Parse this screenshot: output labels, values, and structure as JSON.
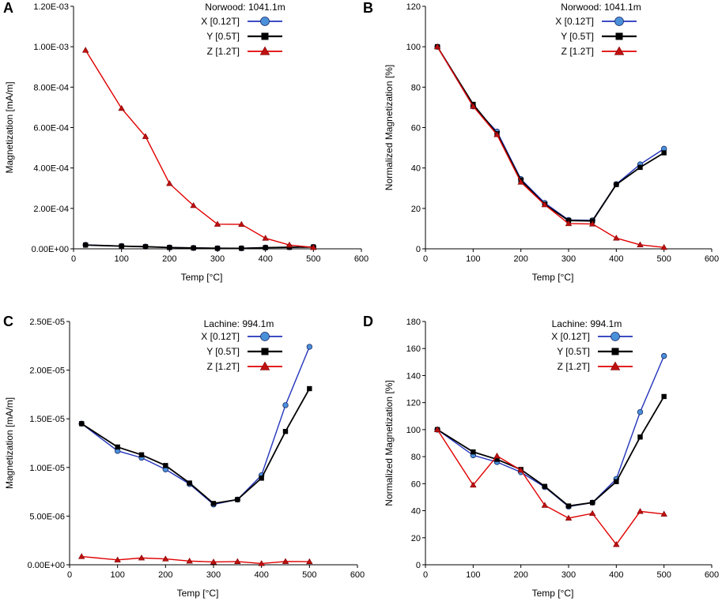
{
  "figure": {
    "colors": {
      "x_series": "#2233bb",
      "x_marker": "#4a90d9",
      "y_series": "#000000",
      "z_series": "#e00000",
      "z_marker": "#c01010"
    }
  },
  "chart_data": [
    {
      "panel": "A",
      "type": "line",
      "location": "Norwood: 1041.1m",
      "xlabel": "Temp [°C]",
      "ylabel": "Magnetization [mA/m]",
      "xlim": [
        0,
        600
      ],
      "ylim": [
        0,
        0.0012
      ],
      "xticks": [
        0,
        100,
        200,
        300,
        400,
        500,
        600
      ],
      "yticks": [
        0,
        0.0002,
        0.0004,
        0.0006,
        0.0008,
        0.001,
        0.0012
      ],
      "ytick_labels": [
        "0.00E+00",
        "2.00E-04",
        "4.00E-04",
        "6.00E-04",
        "8.00E-04",
        "1.00E-03",
        "1.20E-03"
      ],
      "x": [
        25,
        100,
        150,
        200,
        250,
        300,
        350,
        400,
        450,
        500
      ],
      "series": [
        {
          "name": "X [0.12T]",
          "marker": "circle",
          "values": [
            1.95e-05,
            1.4e-05,
            1.1e-05,
            6.7e-06,
            4.4e-06,
            2.8e-06,
            2.7e-06,
            6.2e-06,
            8.1e-06,
            9.6e-06
          ]
        },
        {
          "name": "Y [0.5T]",
          "marker": "square",
          "values": [
            1.85e-05,
            1.33e-05,
            1.05e-05,
            6.3e-06,
            4.1e-06,
            2.6e-06,
            2.5e-06,
            5.9e-06,
            7.5e-06,
            8.8e-06
          ]
        },
        {
          "name": "Z [1.2T]",
          "marker": "triangle",
          "values": [
            0.000983,
            0.000695,
            0.000556,
            0.000323,
            0.000214,
            0.000122,
            0.000121,
            5.25e-05,
            1.9e-05,
            6.5e-06
          ]
        }
      ]
    },
    {
      "panel": "B",
      "type": "line",
      "location": "Norwood: 1041.1m",
      "xlabel": "Temp [°C]",
      "ylabel": "Normalized Magnetization [%]",
      "xlim": [
        0,
        600
      ],
      "ylim": [
        0,
        120
      ],
      "xticks": [
        0,
        100,
        200,
        300,
        400,
        500,
        600
      ],
      "yticks": [
        0,
        20,
        40,
        60,
        80,
        100,
        120
      ],
      "ytick_labels": [
        "0",
        "20",
        "40",
        "60",
        "80",
        "100",
        "120"
      ],
      "x": [
        25,
        100,
        150,
        200,
        250,
        300,
        350,
        400,
        450,
        500
      ],
      "series": [
        {
          "name": "X [0.12T]",
          "marker": "circle",
          "values": [
            100,
            70.5,
            58,
            34.5,
            22.7,
            14.3,
            14.1,
            32,
            41.8,
            49.5
          ]
        },
        {
          "name": "Y [0.5T]",
          "marker": "square",
          "values": [
            100,
            71.5,
            57,
            34,
            22,
            14,
            13.8,
            31.8,
            40.3,
            47.5
          ]
        },
        {
          "name": "Z [1.2T]",
          "marker": "triangle",
          "values": [
            100,
            70.5,
            56.5,
            33,
            21.8,
            12.5,
            12.3,
            5.3,
            2,
            0.7
          ]
        }
      ]
    },
    {
      "panel": "C",
      "type": "line",
      "location": "Lachine: 994.1m",
      "xlabel": "Temp [°C]",
      "ylabel": "Magnetization [mA/m]",
      "xlim": [
        0,
        600
      ],
      "ylim": [
        0,
        2.5e-05
      ],
      "xticks": [
        0,
        100,
        200,
        300,
        400,
        500,
        600
      ],
      "yticks": [
        0,
        5e-06,
        1e-05,
        1.5e-05,
        2e-05,
        2.5e-05
      ],
      "ytick_labels": [
        "0.00E+00",
        "5.00E-06",
        "1.00E-05",
        "1.50E-05",
        "2.00E-05",
        "2.50E-05"
      ],
      "x": [
        25,
        100,
        150,
        200,
        250,
        300,
        350,
        400,
        450,
        500
      ],
      "series": [
        {
          "name": "X [0.12T]",
          "marker": "circle",
          "values": [
            1.45e-05,
            1.17e-05,
            1.1e-05,
            9.8e-06,
            8.3e-06,
            6.2e-06,
            6.7e-06,
            9.2e-06,
            1.64e-05,
            2.24e-05
          ]
        },
        {
          "name": "Y [0.5T]",
          "marker": "square",
          "values": [
            1.45e-05,
            1.21e-05,
            1.13e-05,
            1.02e-05,
            8.4e-06,
            6.3e-06,
            6.7e-06,
            8.9e-06,
            1.37e-05,
            1.81e-05
          ]
        },
        {
          "name": "Z [1.2T]",
          "marker": "triangle",
          "values": [
            8.5e-07,
            5e-07,
            7e-07,
            6e-07,
            3.8e-07,
            2.9e-07,
            3.3e-07,
            1.3e-07,
            3.4e-07,
            3.2e-07
          ]
        }
      ]
    },
    {
      "panel": "D",
      "type": "line",
      "location": "Lachine: 994.1m",
      "xlabel": "Temp [°C]",
      "ylabel": "Normalized Magnetization [%]",
      "xlim": [
        0,
        600
      ],
      "ylim": [
        0,
        180
      ],
      "xticks": [
        0,
        100,
        200,
        300,
        400,
        500,
        600
      ],
      "yticks": [
        0,
        20,
        40,
        60,
        80,
        100,
        120,
        140,
        160,
        180
      ],
      "ytick_labels": [
        "0",
        "20",
        "40",
        "60",
        "80",
        "100",
        "120",
        "140",
        "160",
        "180"
      ],
      "x": [
        25,
        100,
        150,
        200,
        250,
        300,
        350,
        400,
        450,
        500
      ],
      "series": [
        {
          "name": "X [0.12T]",
          "marker": "circle",
          "values": [
            100,
            81,
            76,
            68.5,
            57.5,
            43,
            46,
            63.5,
            113,
            154.5
          ]
        },
        {
          "name": "Y [0.5T]",
          "marker": "square",
          "values": [
            100,
            83.5,
            78,
            70.5,
            58,
            43.5,
            46,
            61.5,
            94.5,
            124.5
          ]
        },
        {
          "name": "Z [1.2T]",
          "marker": "triangle",
          "values": [
            100,
            59,
            80.5,
            70,
            44,
            34.5,
            38,
            15,
            39.5,
            37.5
          ]
        }
      ]
    }
  ]
}
